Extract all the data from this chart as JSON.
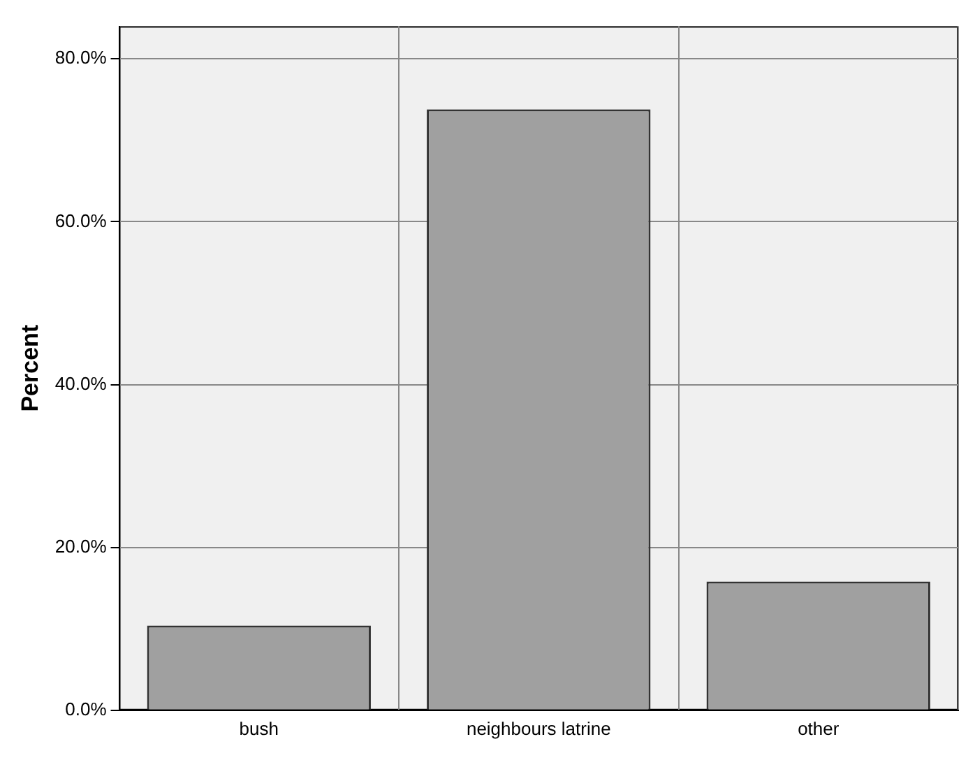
{
  "chart_data": {
    "type": "bar",
    "ylabel": "Percent",
    "categories": [
      "bush",
      "neighbours latrine",
      "other"
    ],
    "values": [
      10.4,
      73.8,
      15.8
    ],
    "color": "#a0a0a0",
    "ylim": [
      0,
      84
    ],
    "yticks": [
      {
        "value": 0,
        "label": "0.0%"
      },
      {
        "value": 20,
        "label": "20.0%"
      },
      {
        "value": 40,
        "label": "40.0%"
      },
      {
        "value": 60,
        "label": "60.0%"
      },
      {
        "value": 80,
        "label": "80.0%"
      }
    ],
    "grid": true,
    "legend": false
  }
}
